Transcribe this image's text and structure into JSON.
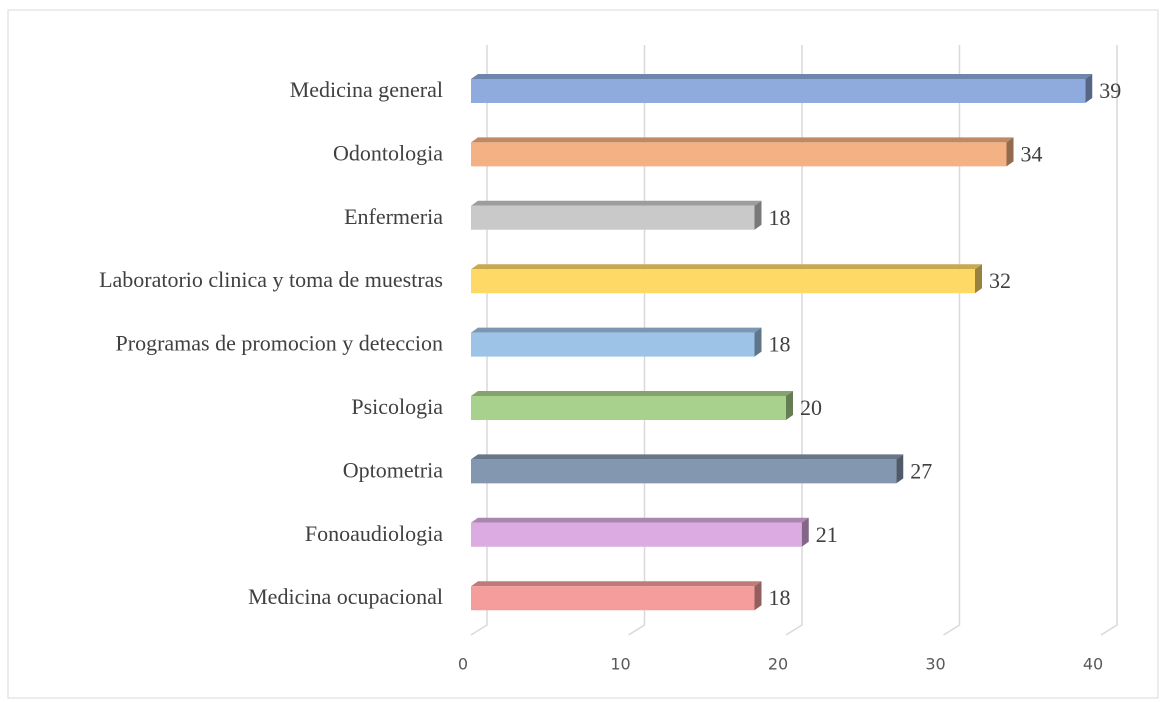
{
  "chart_data": {
    "type": "bar3d",
    "orientation": "horizontal",
    "categories": [
      "Medicina general",
      "Odontologia",
      "Enfermeria",
      "Laboratorio clinica y toma de muestras",
      "Programas de promocion y deteccion",
      "Psicologia",
      "Optometria",
      "Fonoaudiologia",
      "Medicina ocupacional"
    ],
    "values": [
      39,
      34,
      18,
      32,
      18,
      20,
      27,
      21,
      18
    ],
    "colors": [
      "#8faadc",
      "#f4b183",
      "#c9c9c9",
      "#ffd966",
      "#9dc3e6",
      "#a9d18e",
      "#8497b0",
      "#dcabe1",
      "#f59d9d"
    ],
    "xlim": [
      0,
      40
    ],
    "xticks": [
      0,
      10,
      20,
      30,
      40
    ],
    "grid": true
  }
}
